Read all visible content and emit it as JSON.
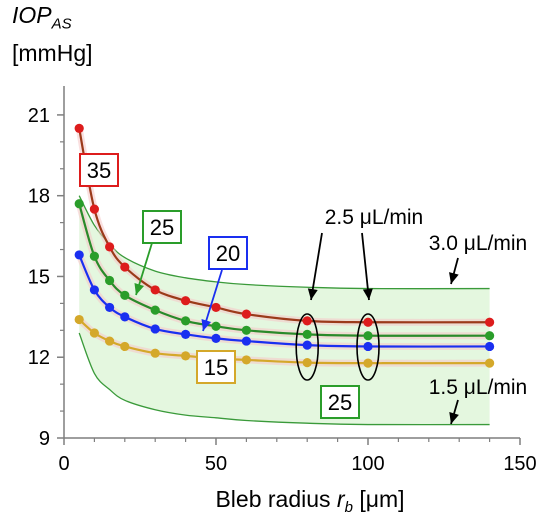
{
  "chart_data": {
    "type": "line",
    "ylabel_main": "IOP",
    "ylabel_sub": "AS",
    "yunit": "[mmHg]",
    "xlabel_pre": "Bleb radius ",
    "xlabel_var": "r",
    "xlabel_sub": "b",
    "xlabel_post": " [μm]",
    "xlim": [
      0,
      150
    ],
    "ylim": [
      9,
      22
    ],
    "xticks": [
      0,
      50,
      100,
      150
    ],
    "yticks": [
      9,
      12,
      15,
      18,
      21
    ],
    "x": [
      5,
      10,
      15,
      20,
      30,
      40,
      50,
      60,
      80,
      100,
      140
    ],
    "series": [
      {
        "name": "35",
        "color": "#dd1c1c",
        "line_color": "#9b3a1a",
        "values": [
          20.5,
          17.5,
          16.1,
          15.35,
          14.5,
          14.1,
          13.85,
          13.6,
          13.35,
          13.3,
          13.3
        ]
      },
      {
        "name": "25",
        "color": "#2a9d2a",
        "line_color": "#2a8a2a",
        "values": [
          17.7,
          15.75,
          14.85,
          14.3,
          13.75,
          13.35,
          13.15,
          13.0,
          12.85,
          12.8,
          12.8
        ]
      },
      {
        "name": "20",
        "color": "#1a2ff0",
        "line_color": "#1a2ff0",
        "values": [
          15.8,
          14.5,
          13.85,
          13.5,
          13.05,
          12.85,
          12.7,
          12.6,
          12.45,
          12.4,
          12.4
        ]
      },
      {
        "name": "15",
        "color": "#d4a82a",
        "line_color": "#d4a82a",
        "values": [
          13.4,
          12.9,
          12.6,
          12.4,
          12.15,
          12.05,
          11.95,
          11.9,
          11.8,
          11.78,
          11.78
        ]
      }
    ],
    "band": {
      "upper": [
        18.0,
        16.9,
        16.2,
        15.7,
        15.2,
        14.95,
        14.8,
        14.7,
        14.6,
        14.55,
        14.55
      ],
      "lower": [
        12.9,
        11.4,
        10.8,
        10.4,
        10.05,
        9.85,
        9.75,
        9.65,
        9.55,
        9.5,
        9.5
      ],
      "fill": "#e4f7df",
      "stroke": "#3a9a3a"
    },
    "annotations": {
      "flow_high": "3.0 μL/min",
      "flow_low": "1.5 μL/min",
      "flow_mid": "2.5 μL/min",
      "box_lower_band": "25"
    }
  }
}
